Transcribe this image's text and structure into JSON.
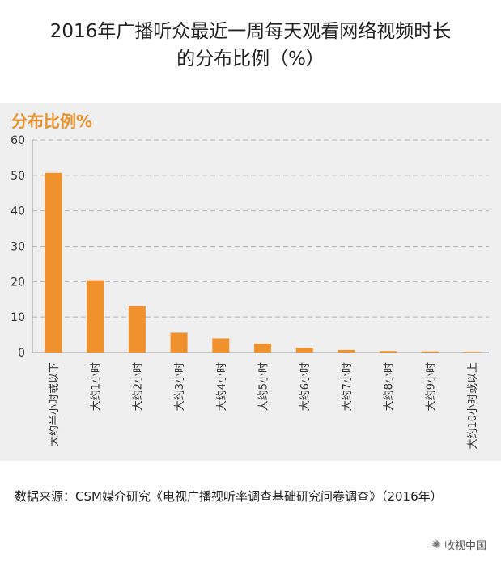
{
  "title_line1": "2016年广播听众最近一周每天观看网络视频时长",
  "title_line2": "的分布比例（%）",
  "source": "数据来源：CSM媒介研究《电视广播视听率调查基础研究问卷调查》（2016年）",
  "watermark": "收视中国",
  "chart_data": {
    "type": "bar",
    "ylabel": "分布比例%",
    "xlabel": "",
    "ylim": [
      0,
      60
    ],
    "yticks": [
      0,
      10,
      20,
      30,
      40,
      50,
      60
    ],
    "grid": true,
    "bar_color": "#ef912d",
    "categories": [
      "大约半小时或以下",
      "大约1小时",
      "大约2小时",
      "大约3小时",
      "大约4小时",
      "大约5小时",
      "大约6小时",
      "大约7小时",
      "大约8小时",
      "大约9小时",
      "大约10小时或以上"
    ],
    "values": [
      50.7,
      20.4,
      13.1,
      5.6,
      4.0,
      2.5,
      1.3,
      0.7,
      0.4,
      0.3,
      0.2
    ]
  }
}
